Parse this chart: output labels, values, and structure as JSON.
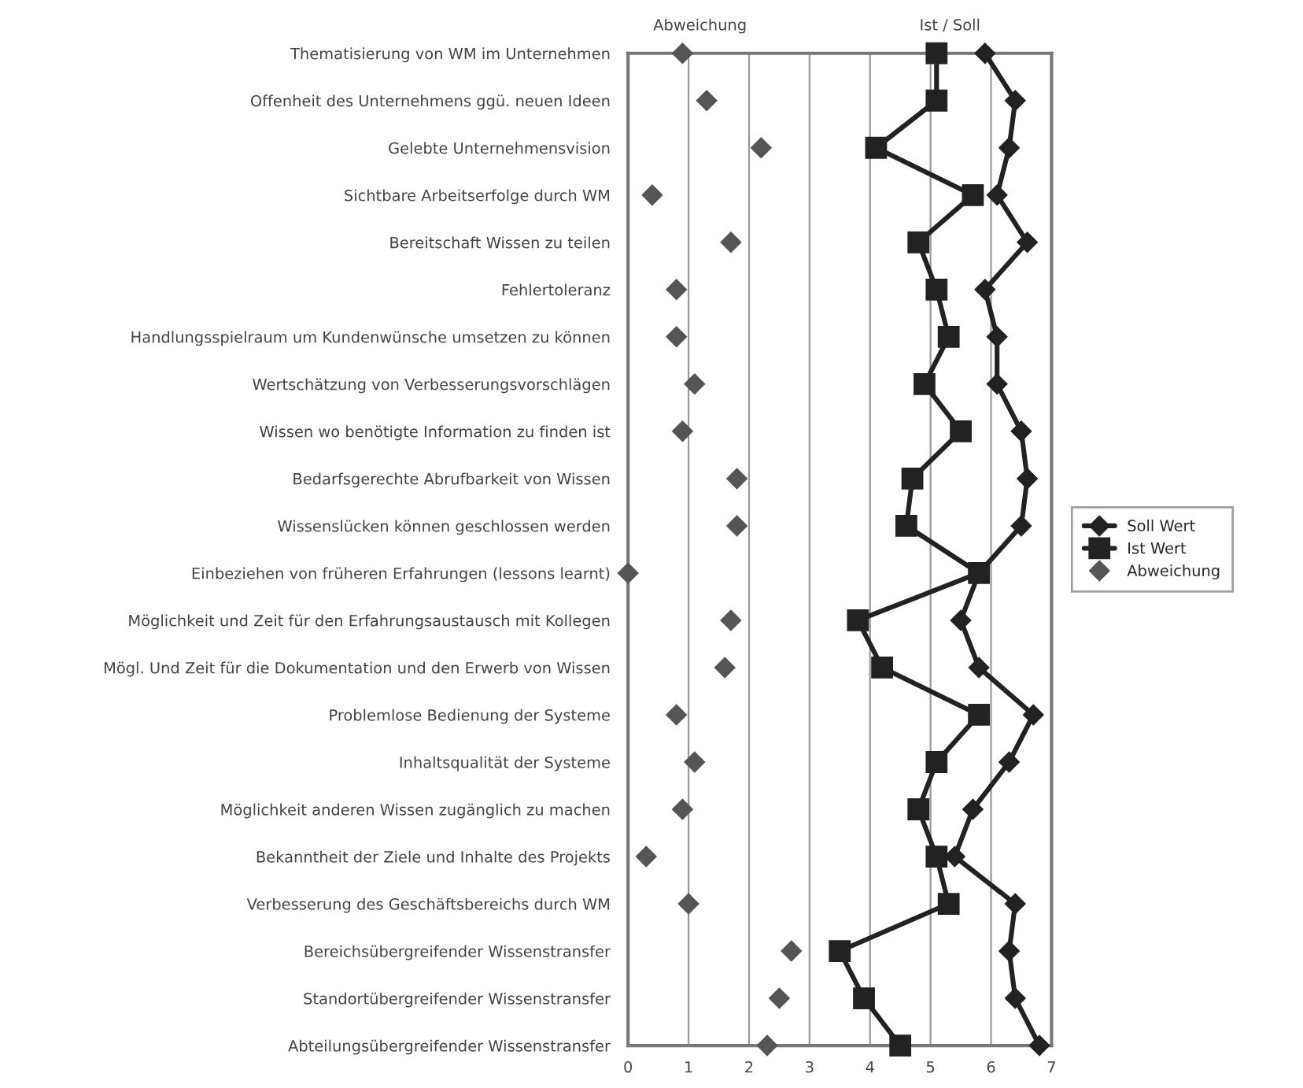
{
  "chart_data": {
    "type": "line",
    "orientation": "horizontal",
    "categories": [
      "Thematisierung von WM im Unternehmen",
      "Offenheit des Unternehmens ggü. neuen Ideen",
      "Gelebte Unternehmensvision",
      "Sichtbare Arbeitserfolge durch WM",
      "Bereitschaft Wissen zu teilen",
      "Fehlertoleranz",
      "Handlungsspielraum um Kundenwünsche umsetzen zu können",
      "Wertschätzung von Verbesserungsvorschlägen",
      "Wissen wo benötigte Information zu finden ist",
      "Bedarfsgerechte Abrufbarkeit von Wissen",
      "Wissenslücken können geschlossen werden",
      "Einbeziehen von früheren Erfahrungen (lessons learnt)",
      "Möglichkeit und Zeit für den Erfahrungsaustausch mit Kollegen",
      "Mögl. Und Zeit für die Dokumentation und den Erwerb von Wissen",
      "Problemlose Bedienung der Systeme",
      "Inhaltsqualität der Systeme",
      "Möglichkeit anderen Wissen zugänglich zu machen",
      "Bekanntheit der Ziele und Inhalte des Projekts",
      "Verbesserung des Geschäftsbereichs durch WM",
      "Bereichsübergreifender Wissenstransfer",
      "Standortübergreifender Wissenstransfer",
      "Abteilungsübergreifender Wissenstransfer"
    ],
    "series": [
      {
        "name": "Soll Wert",
        "marker": "diamond",
        "color": "#222222",
        "values": [
          5.9,
          6.4,
          6.3,
          6.1,
          6.6,
          5.9,
          6.1,
          6.1,
          6.5,
          6.6,
          6.5,
          5.8,
          5.5,
          5.8,
          6.7,
          6.3,
          5.7,
          5.4,
          6.4,
          6.3,
          6.4,
          6.8
        ]
      },
      {
        "name": "Ist Wert",
        "marker": "square",
        "color": "#222222",
        "values": [
          5.1,
          5.1,
          4.1,
          5.7,
          4.8,
          5.1,
          5.3,
          4.9,
          5.5,
          4.7,
          4.6,
          5.8,
          3.8,
          4.2,
          5.8,
          5.1,
          4.8,
          5.1,
          5.3,
          3.5,
          3.9,
          4.5
        ]
      },
      {
        "name": "Abweichung",
        "type": "scatter",
        "marker": "diamond",
        "color": "#555555",
        "values": [
          0.9,
          1.3,
          2.2,
          0.4,
          1.7,
          0.8,
          0.8,
          1.1,
          0.9,
          1.8,
          1.8,
          0.0,
          1.7,
          1.6,
          0.8,
          1.1,
          0.9,
          0.3,
          1.0,
          2.7,
          2.5,
          2.3
        ]
      }
    ],
    "xlim": [
      0,
      7
    ],
    "xticks": [
      0,
      1,
      2,
      3,
      4,
      5,
      6,
      7
    ],
    "grid": "x",
    "legend": "right",
    "annotations": [
      "Abweichung",
      "Ist / Soll"
    ]
  }
}
